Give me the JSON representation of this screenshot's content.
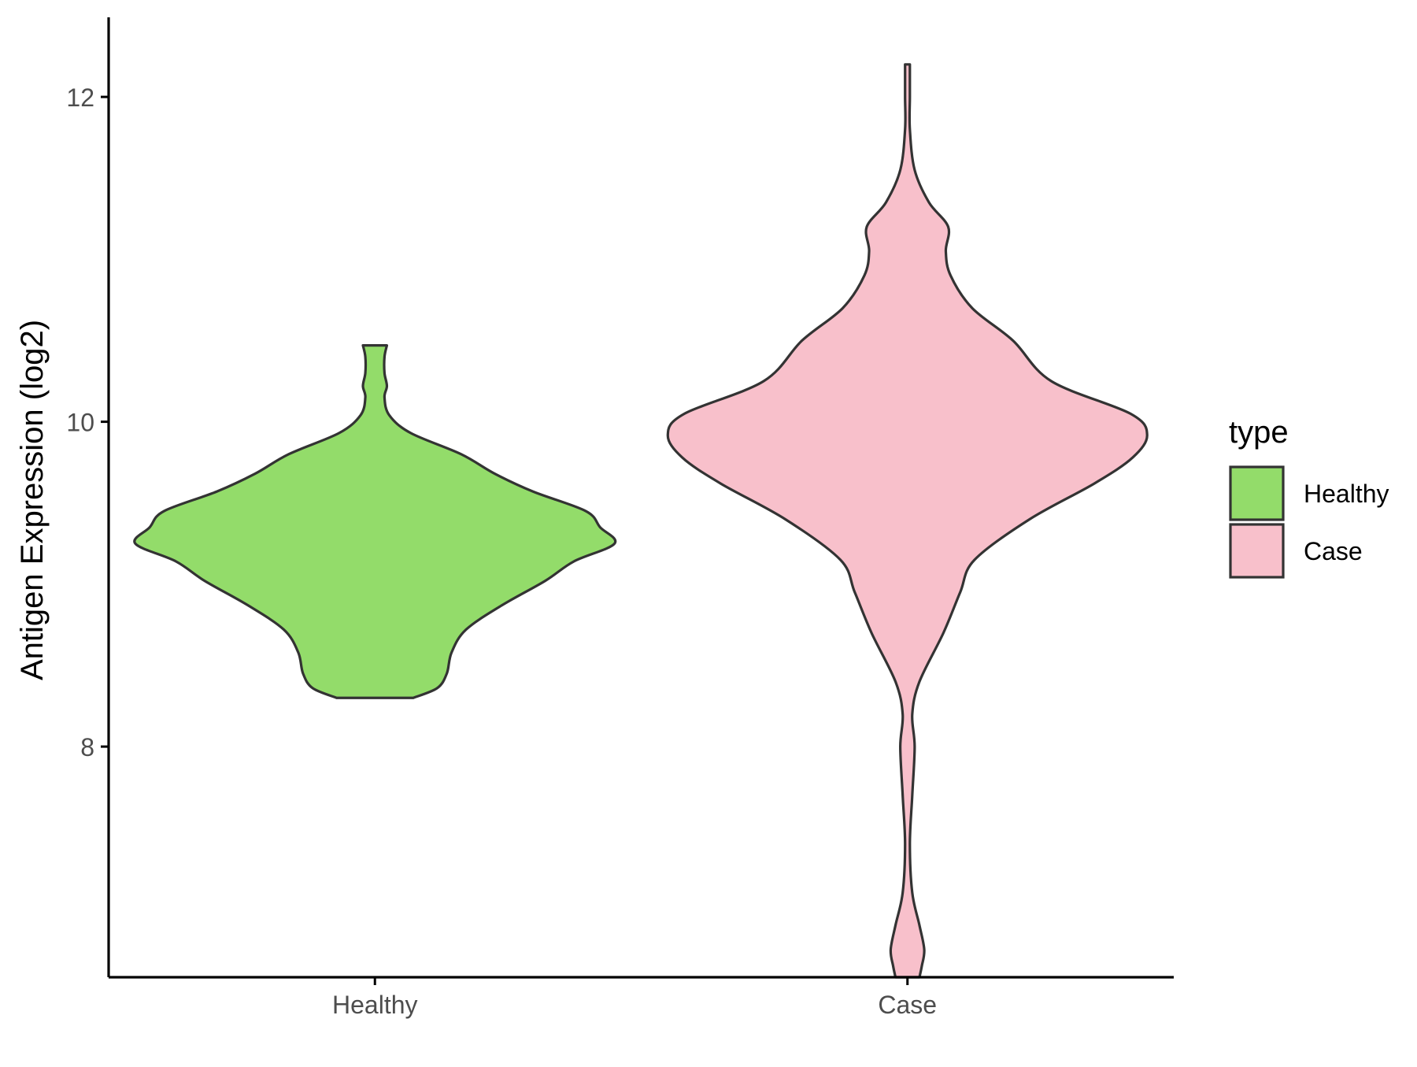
{
  "chart_data": {
    "type": "violin",
    "title": "",
    "xlabel": "",
    "ylabel": "Antigen Expression (log2)",
    "categories": [
      "Healthy",
      "Case"
    ],
    "yticks": [
      8,
      10,
      12
    ],
    "ylim": [
      6.58,
      12.49
    ],
    "grid": false,
    "legend": {
      "title": "type",
      "position": "right",
      "entries": [
        {
          "label": "Healthy",
          "color": "#93DC6A"
        },
        {
          "label": "Case",
          "color": "#F8C0CB"
        }
      ]
    },
    "series": [
      {
        "name": "Healthy",
        "color": "#93DC6A",
        "min": 8.3,
        "max": 10.47,
        "density_profile": [
          [
            8.3,
            0.16
          ],
          [
            8.36,
            0.26
          ],
          [
            8.45,
            0.3
          ],
          [
            8.58,
            0.32
          ],
          [
            8.72,
            0.38
          ],
          [
            8.87,
            0.53
          ],
          [
            9.02,
            0.71
          ],
          [
            9.14,
            0.83
          ],
          [
            9.25,
            1.0
          ],
          [
            9.35,
            0.94
          ],
          [
            9.45,
            0.88
          ],
          [
            9.57,
            0.66
          ],
          [
            9.68,
            0.5
          ],
          [
            9.8,
            0.36
          ],
          [
            9.93,
            0.15
          ],
          [
            10.04,
            0.06
          ],
          [
            10.15,
            0.04
          ],
          [
            10.22,
            0.05
          ],
          [
            10.3,
            0.04
          ],
          [
            10.4,
            0.04
          ],
          [
            10.47,
            0.05
          ]
        ]
      },
      {
        "name": "Case",
        "color": "#F8C0CB",
        "min": 6.58,
        "max": 12.2,
        "density_profile": [
          [
            6.58,
            0.05
          ],
          [
            6.65,
            0.06
          ],
          [
            6.75,
            0.07
          ],
          [
            6.9,
            0.05
          ],
          [
            7.1,
            0.02
          ],
          [
            7.4,
            0.01
          ],
          [
            7.7,
            0.02
          ],
          [
            8.0,
            0.03
          ],
          [
            8.2,
            0.02
          ],
          [
            8.4,
            0.05
          ],
          [
            8.7,
            0.15
          ],
          [
            8.95,
            0.22
          ],
          [
            9.15,
            0.28
          ],
          [
            9.4,
            0.51
          ],
          [
            9.62,
            0.78
          ],
          [
            9.78,
            0.94
          ],
          [
            9.92,
            1.0
          ],
          [
            10.05,
            0.93
          ],
          [
            10.25,
            0.6
          ],
          [
            10.5,
            0.44
          ],
          [
            10.7,
            0.27
          ],
          [
            10.9,
            0.18
          ],
          [
            11.05,
            0.16
          ],
          [
            11.2,
            0.17
          ],
          [
            11.35,
            0.09
          ],
          [
            11.55,
            0.03
          ],
          [
            11.8,
            0.01
          ],
          [
            12.0,
            0.01
          ],
          [
            12.2,
            0.01
          ]
        ]
      }
    ]
  }
}
